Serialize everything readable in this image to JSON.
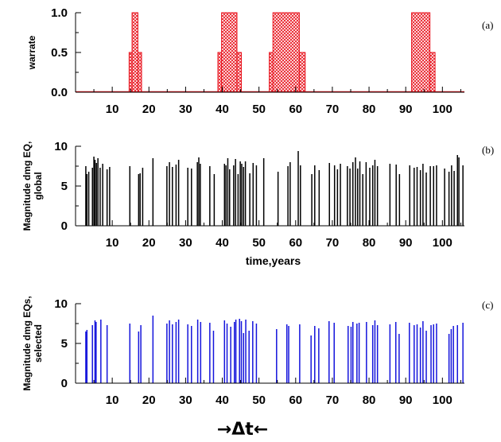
{
  "caption": "→Δt←",
  "chart_data": [
    {
      "id": "a",
      "type": "area",
      "tag": "(a)",
      "ylabel": "warrate",
      "xlabel": "",
      "xlim": [
        0,
        106
      ],
      "ylim": [
        0,
        1.0
      ],
      "xticks": [
        10,
        20,
        30,
        40,
        50,
        60,
        70,
        80,
        90,
        100
      ],
      "yticks": [
        0.0,
        0.5,
        1.0
      ],
      "ytick_labels": [
        "0.0",
        "0.5",
        "1.0"
      ],
      "color": "#e8141e",
      "segments": [
        [
          14.6,
          15.4,
          0.5
        ],
        [
          15.4,
          17.0,
          1.0
        ],
        [
          17.0,
          18.0,
          0.5
        ],
        [
          38.8,
          39.8,
          0.5
        ],
        [
          39.8,
          44.0,
          1.0
        ],
        [
          44.0,
          45.2,
          0.5
        ],
        [
          52.8,
          53.8,
          0.5
        ],
        [
          53.8,
          61.0,
          1.0
        ],
        [
          61.0,
          62.6,
          0.5
        ],
        [
          91.6,
          96.6,
          1.0
        ],
        [
          96.6,
          98.0,
          0.5
        ]
      ]
    },
    {
      "id": "b",
      "type": "bar",
      "tag": "(b)",
      "ylabel": [
        "Magnitude dmg EQ,",
        "global"
      ],
      "xlabel": "time,years",
      "xlim": [
        0,
        106
      ],
      "ylim": [
        0,
        10
      ],
      "xticks": [
        10,
        20,
        30,
        40,
        50,
        60,
        70,
        80,
        90,
        100
      ],
      "yticks": [
        0,
        5,
        10
      ],
      "ytick_labels": [
        "0",
        "5",
        "10"
      ],
      "color": "#000000",
      "events": [
        [
          2.8,
          7.5
        ],
        [
          3.1,
          6.5
        ],
        [
          3.6,
          6.8
        ],
        [
          4.6,
          7.3
        ],
        [
          5.0,
          8.7
        ],
        [
          5.3,
          8.3
        ],
        [
          5.7,
          7.9
        ],
        [
          6.1,
          8.5
        ],
        [
          6.7,
          7.3
        ],
        [
          7.4,
          7.8
        ],
        [
          8.6,
          7.1
        ],
        [
          9.3,
          7.4
        ],
        [
          14.8,
          7.5
        ],
        [
          17.2,
          6.5
        ],
        [
          17.6,
          6.6
        ],
        [
          18.3,
          7.3
        ],
        [
          21.1,
          8.5
        ],
        [
          24.9,
          7.5
        ],
        [
          25.6,
          8.0
        ],
        [
          26.4,
          7.4
        ],
        [
          27.4,
          7.7
        ],
        [
          28.1,
          8.3
        ],
        [
          30.6,
          7.3
        ],
        [
          31.6,
          7.2
        ],
        [
          33.2,
          8.0
        ],
        [
          33.6,
          8.6
        ],
        [
          34.0,
          7.8
        ],
        [
          36.6,
          7.5
        ],
        [
          37.8,
          6.5
        ],
        [
          40.6,
          7.8
        ],
        [
          41.0,
          7.6
        ],
        [
          41.5,
          8.5
        ],
        [
          42.0,
          7.1
        ],
        [
          43.1,
          7.6
        ],
        [
          43.6,
          8.4
        ],
        [
          44.3,
          6.5
        ],
        [
          44.9,
          8.1
        ],
        [
          45.3,
          7.8
        ],
        [
          45.8,
          7.4
        ],
        [
          46.3,
          8.1
        ],
        [
          47.5,
          6.6
        ],
        [
          48.4,
          7.9
        ],
        [
          49.3,
          7.6
        ],
        [
          51.3,
          8.5
        ],
        [
          55.2,
          6.8
        ],
        [
          57.9,
          7.5
        ],
        [
          58.5,
          8.0
        ],
        [
          60.7,
          9.4
        ],
        [
          61.3,
          7.6
        ],
        [
          64.4,
          6.5
        ],
        [
          65.2,
          7.6
        ],
        [
          66.4,
          7.0
        ],
        [
          69.2,
          7.9
        ],
        [
          70.6,
          7.6
        ],
        [
          71.4,
          7.1
        ],
        [
          72.2,
          7.8
        ],
        [
          74.1,
          7.5
        ],
        [
          74.8,
          7.2
        ],
        [
          75.6,
          8.0
        ],
        [
          76.3,
          8.6
        ],
        [
          76.9,
          7.2
        ],
        [
          77.5,
          8.1
        ],
        [
          78.3,
          6.5
        ],
        [
          79.2,
          8.0
        ],
        [
          80.2,
          7.3
        ],
        [
          81.0,
          7.6
        ],
        [
          81.6,
          8.3
        ],
        [
          82.3,
          7.5
        ],
        [
          85.7,
          7.8
        ],
        [
          87.4,
          7.7
        ],
        [
          88.3,
          6.5
        ],
        [
          91.1,
          7.6
        ],
        [
          92.3,
          7.3
        ],
        [
          93.1,
          7.4
        ],
        [
          94.0,
          7.0
        ],
        [
          94.7,
          7.8
        ],
        [
          95.6,
          6.7
        ],
        [
          96.7,
          7.5
        ],
        [
          97.6,
          7.5
        ],
        [
          98.4,
          7.6
        ],
        [
          100.6,
          7.2
        ],
        [
          101.8,
          6.8
        ],
        [
          102.5,
          7.6
        ],
        [
          103.2,
          6.9
        ],
        [
          104.1,
          8.9
        ],
        [
          104.5,
          8.6
        ],
        [
          105.6,
          7.6
        ]
      ]
    },
    {
      "id": "c",
      "type": "bar",
      "tag": "(c)",
      "ylabel": [
        "Magnitude dmg EQs,",
        "selected"
      ],
      "xlabel": "",
      "xlim": [
        0,
        106
      ],
      "ylim": [
        0,
        10
      ],
      "xticks": [
        10,
        20,
        30,
        40,
        50,
        60,
        70,
        80,
        90,
        100
      ],
      "yticks": [
        0,
        5,
        10
      ],
      "ytick_labels": [
        "0",
        "5",
        "10"
      ],
      "color": "#1414dc",
      "events": [
        [
          2.8,
          6.5
        ],
        [
          3.1,
          6.7
        ],
        [
          4.6,
          7.3
        ],
        [
          5.3,
          7.9
        ],
        [
          5.6,
          7.7
        ],
        [
          6.9,
          8.0
        ],
        [
          8.6,
          7.3
        ],
        [
          14.8,
          7.5
        ],
        [
          17.2,
          6.5
        ],
        [
          17.8,
          7.3
        ],
        [
          21.1,
          8.5
        ],
        [
          24.9,
          7.5
        ],
        [
          25.6,
          7.9
        ],
        [
          26.4,
          7.4
        ],
        [
          27.4,
          7.7
        ],
        [
          28.1,
          8.0
        ],
        [
          30.6,
          7.4
        ],
        [
          31.6,
          7.2
        ],
        [
          33.3,
          8.0
        ],
        [
          34.1,
          7.7
        ],
        [
          36.6,
          7.6
        ],
        [
          37.6,
          6.6
        ],
        [
          40.6,
          7.9
        ],
        [
          41.3,
          7.5
        ],
        [
          42.3,
          7.1
        ],
        [
          43.3,
          7.7
        ],
        [
          43.7,
          8.0
        ],
        [
          44.7,
          8.1
        ],
        [
          45.2,
          7.8
        ],
        [
          45.8,
          6.3
        ],
        [
          46.4,
          8.0
        ],
        [
          47.3,
          6.6
        ],
        [
          48.3,
          7.8
        ],
        [
          49.3,
          7.5
        ],
        [
          54.8,
          6.8
        ],
        [
          57.6,
          7.4
        ],
        [
          58.1,
          7.2
        ],
        [
          61.1,
          7.4
        ],
        [
          64.2,
          6.0
        ],
        [
          65.2,
          7.2
        ],
        [
          66.3,
          6.9
        ],
        [
          69.1,
          7.8
        ],
        [
          70.5,
          7.6
        ],
        [
          74.3,
          7.2
        ],
        [
          75.1,
          7.1
        ],
        [
          75.6,
          7.7
        ],
        [
          76.7,
          7.5
        ],
        [
          77.3,
          7.6
        ],
        [
          79.3,
          7.7
        ],
        [
          81.0,
          7.3
        ],
        [
          81.6,
          7.9
        ],
        [
          82.3,
          7.3
        ],
        [
          85.7,
          7.4
        ],
        [
          87.3,
          7.7
        ],
        [
          88.2,
          6.2
        ],
        [
          91.0,
          7.6
        ],
        [
          92.3,
          7.3
        ],
        [
          93.1,
          7.4
        ],
        [
          94.0,
          7.0
        ],
        [
          94.7,
          7.8
        ],
        [
          95.6,
          6.6
        ],
        [
          96.9,
          7.3
        ],
        [
          97.6,
          7.4
        ],
        [
          98.4,
          7.5
        ],
        [
          101.8,
          6.2
        ],
        [
          102.4,
          6.8
        ],
        [
          103.0,
          7.2
        ],
        [
          104.1,
          7.3
        ],
        [
          105.6,
          7.6
        ]
      ]
    }
  ]
}
